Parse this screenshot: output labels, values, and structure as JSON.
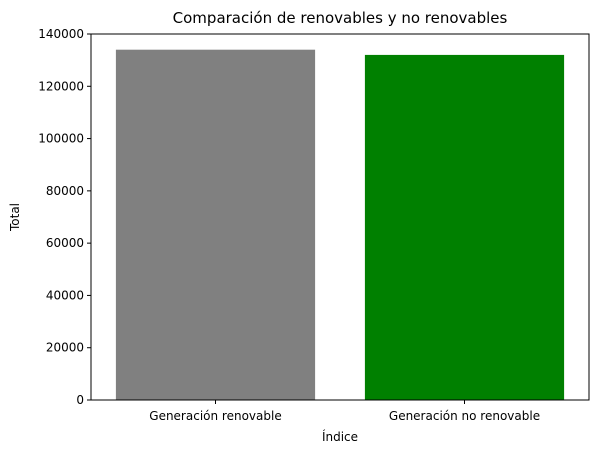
{
  "chart_data": {
    "type": "bar",
    "title": "Comparación de renovables y no renovables",
    "xlabel": "Índice",
    "ylabel": "Total",
    "categories": [
      "Generación renovable",
      "Generación no renovable"
    ],
    "values": [
      134000,
      132000
    ],
    "bar_colors": [
      "#808080",
      "#008000"
    ],
    "ylim": [
      0,
      140000
    ],
    "yticks": [
      0,
      20000,
      40000,
      60000,
      80000,
      100000,
      120000,
      140000
    ],
    "grid": false,
    "legend": "none"
  }
}
